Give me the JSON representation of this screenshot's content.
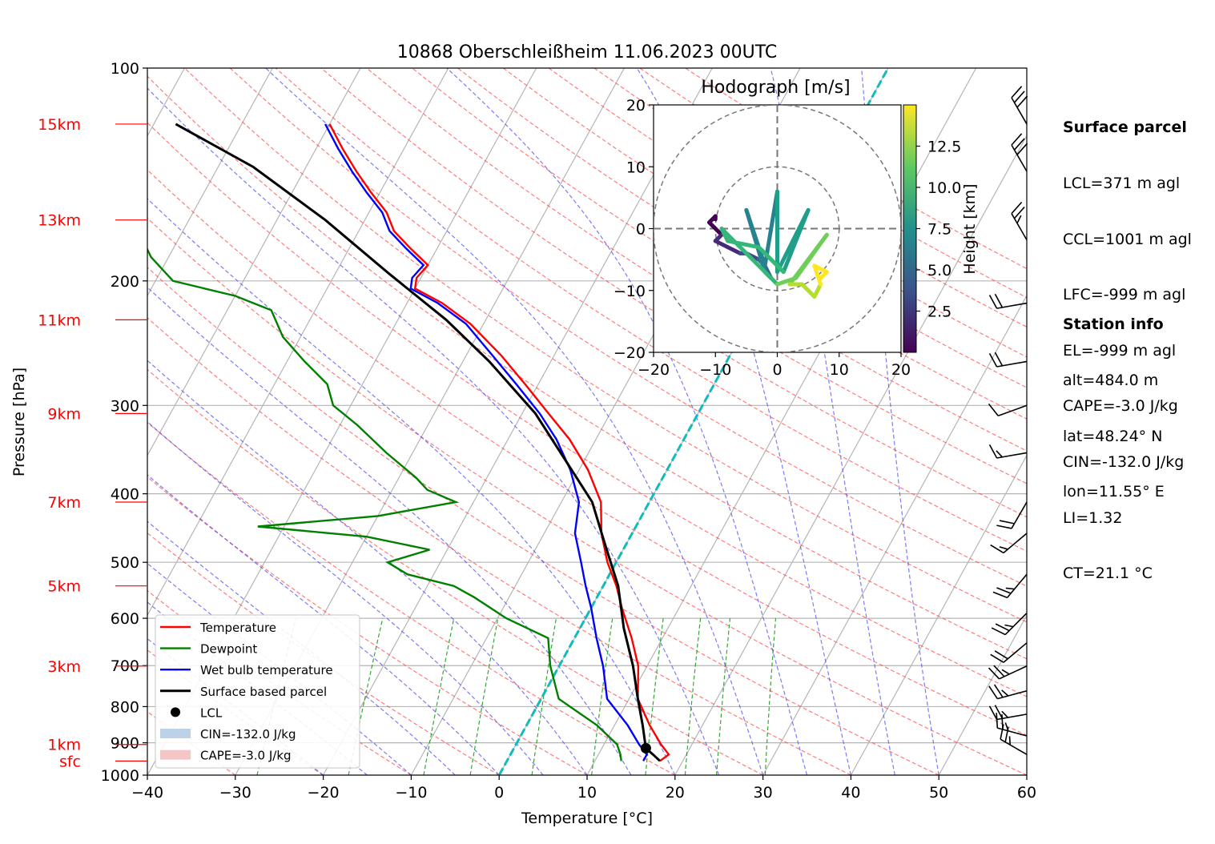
{
  "chart_data": {
    "type": "line",
    "title": "10868 Oberschleißheim 11.06.2023 00UTC",
    "xlabel": "Temperature [°C]",
    "ylabel": "Pressure [hPa]",
    "xlim": [
      -40,
      60
    ],
    "ylim": [
      1000,
      100
    ],
    "y_scale": "log",
    "skew": "skew-T",
    "x_ticks": [
      "−40",
      "−30",
      "−20",
      "−10",
      "0",
      "10",
      "20",
      "30",
      "40",
      "50",
      "60"
    ],
    "y_ticks": [
      "100",
      "200",
      "300",
      "400",
      "500",
      "600",
      "700",
      "800",
      "900",
      "1000"
    ],
    "height_labels": [
      {
        "label": "sfc",
        "p": 955
      },
      {
        "label": "1km",
        "p": 905
      },
      {
        "label": "3km",
        "p": 701
      },
      {
        "label": "5km",
        "p": 540
      },
      {
        "label": "7km",
        "p": 411
      },
      {
        "label": "9km",
        "p": 308
      },
      {
        "label": "11km",
        "p": 227
      },
      {
        "label": "13km",
        "p": 164
      },
      {
        "label": "15km",
        "p": 120
      }
    ],
    "series": [
      {
        "name": "Temperature",
        "color": "#ff0000",
        "points": [
          [
            17.4,
            955
          ],
          [
            18.0,
            935
          ],
          [
            16.5,
            905
          ],
          [
            14.0,
            850
          ],
          [
            11.0,
            780
          ],
          [
            9.0,
            701
          ],
          [
            6.5,
            640
          ],
          [
            3.5,
            580
          ],
          [
            1.5,
            540
          ],
          [
            -1.0,
            500
          ],
          [
            -3.5,
            455
          ],
          [
            -5.5,
            411
          ],
          [
            -9.0,
            370
          ],
          [
            -13.0,
            335
          ],
          [
            -17.0,
            308
          ],
          [
            -21.5,
            280
          ],
          [
            -26.0,
            255
          ],
          [
            -31.5,
            230
          ],
          [
            -36.0,
            215
          ],
          [
            -40.0,
            205
          ],
          [
            -40.5,
            198
          ],
          [
            -40.0,
            190
          ],
          [
            -43.0,
            180
          ],
          [
            -46.0,
            170
          ],
          [
            -48.0,
            160
          ],
          [
            -51.0,
            150
          ],
          [
            -54.0,
            140
          ],
          [
            -57.0,
            130
          ],
          [
            -60.0,
            120
          ]
        ]
      },
      {
        "name": "Dewpoint",
        "color": "#008000",
        "points": [
          [
            13.0,
            955
          ],
          [
            12.5,
            935
          ],
          [
            11.5,
            905
          ],
          [
            8.0,
            850
          ],
          [
            2.0,
            780
          ],
          [
            -1.0,
            701
          ],
          [
            -3.0,
            640
          ],
          [
            -9.0,
            600
          ],
          [
            -14.0,
            560
          ],
          [
            -17.0,
            540
          ],
          [
            -23.0,
            520
          ],
          [
            -26.0,
            500
          ],
          [
            -22.0,
            480
          ],
          [
            -30.0,
            460
          ],
          [
            -43.0,
            445
          ],
          [
            -30.0,
            430
          ],
          [
            -22.0,
            411
          ],
          [
            -26.0,
            395
          ],
          [
            -28.0,
            380
          ],
          [
            -33.0,
            350
          ],
          [
            -38.0,
            320
          ],
          [
            -42.0,
            300
          ],
          [
            -44.0,
            280
          ],
          [
            -48.0,
            260
          ],
          [
            -52.0,
            240
          ],
          [
            -55.0,
            220
          ],
          [
            -60.0,
            210
          ],
          [
            -68.0,
            200
          ],
          [
            -72.0,
            185
          ],
          [
            -74.0,
            175
          ],
          [
            -78.0,
            165
          ],
          [
            -80.0,
            155
          ],
          [
            -82.0,
            145
          ],
          [
            -83.0,
            135
          ],
          [
            -84.0,
            125
          ],
          [
            -85.0,
            120
          ]
        ]
      },
      {
        "name": "Wet bulb temperature",
        "color": "#0000ff",
        "points": [
          [
            15.5,
            955
          ],
          [
            15.5,
            935
          ],
          [
            14.0,
            905
          ],
          [
            11.5,
            850
          ],
          [
            7.5,
            780
          ],
          [
            5.0,
            701
          ],
          [
            2.5,
            640
          ],
          [
            0.0,
            580
          ],
          [
            -2.0,
            540
          ],
          [
            -4.0,
            500
          ],
          [
            -6.5,
            455
          ],
          [
            -8.0,
            411
          ],
          [
            -11.0,
            370
          ],
          [
            -14.5,
            335
          ],
          [
            -18.0,
            308
          ],
          [
            -22.5,
            280
          ],
          [
            -27.0,
            255
          ],
          [
            -32.0,
            230
          ],
          [
            -36.5,
            215
          ],
          [
            -40.5,
            205
          ],
          [
            -41.0,
            198
          ],
          [
            -40.5,
            190
          ],
          [
            -43.5,
            180
          ],
          [
            -46.5,
            170
          ],
          [
            -48.5,
            160
          ],
          [
            -51.5,
            150
          ],
          [
            -54.5,
            140
          ],
          [
            -57.5,
            130
          ],
          [
            -60.5,
            120
          ]
        ]
      },
      {
        "name": "Surface based parcel",
        "color": "#000000",
        "points": [
          [
            17.4,
            955
          ],
          [
            16.2,
            935
          ],
          [
            15.0,
            916
          ],
          [
            13.2,
            850
          ],
          [
            11.0,
            780
          ],
          [
            8.4,
            701
          ],
          [
            5.0,
            620
          ],
          [
            1.7,
            540
          ],
          [
            -2.5,
            470
          ],
          [
            -6.5,
            411
          ],
          [
            -12.0,
            360
          ],
          [
            -18.5,
            308
          ],
          [
            -27.0,
            260
          ],
          [
            -34.5,
            227
          ],
          [
            -44.0,
            195
          ],
          [
            -54.5,
            164
          ],
          [
            -66.0,
            138
          ],
          [
            -77.5,
            120
          ]
        ]
      }
    ],
    "lcl": {
      "name": "LCL",
      "t": 15.0,
      "p": 916
    },
    "legend": [
      "Temperature",
      "Dewpoint",
      "Wet bulb temperature",
      "Surface based parcel",
      "LCL",
      "CIN=-132.0 J/kg",
      "CAPE=-3.0 J/kg"
    ],
    "legend_position": "lower-left",
    "hodograph": {
      "title": "Hodograph [m/s]",
      "xlim": [
        -20,
        20
      ],
      "ylim": [
        -20,
        20
      ],
      "ticks": [
        "−20",
        "−10",
        "0",
        "10",
        "20"
      ],
      "colorbar_label": "Height [km]",
      "colorbar_ticks": [
        "2.5",
        "5.0",
        "7.5",
        "10.0",
        "12.5"
      ],
      "colorbar_range": [
        0,
        15
      ],
      "points": [
        [
          -10,
          1.5,
          0.3
        ],
        [
          -10,
          2,
          0.6
        ],
        [
          -11,
          1,
          0.9
        ],
        [
          -9,
          -1,
          1.2
        ],
        [
          -10,
          -2,
          1.6
        ],
        [
          -8,
          -3,
          2.0
        ],
        [
          -6,
          -4,
          2.6
        ],
        [
          -5,
          -4,
          3.2
        ],
        [
          -3,
          -5,
          4.0
        ],
        [
          -2,
          -6,
          4.6
        ],
        [
          -1,
          -8,
          5.2
        ],
        [
          -2,
          -7,
          5.8
        ],
        [
          -5,
          3,
          6.2
        ],
        [
          -2,
          -6,
          6.6
        ],
        [
          0,
          6,
          7.2
        ],
        [
          0,
          -7,
          7.6
        ],
        [
          5,
          3,
          8.2
        ],
        [
          1,
          -7,
          8.6
        ],
        [
          -3,
          -3,
          9.0
        ],
        [
          -8,
          -2,
          9.6
        ],
        [
          -9,
          0,
          10.0
        ],
        [
          0,
          -9,
          10.4
        ],
        [
          3,
          -8,
          10.8
        ],
        [
          8,
          -1,
          11.2
        ],
        [
          2,
          -9,
          11.6
        ],
        [
          4,
          -9,
          12.0
        ],
        [
          5,
          -10,
          12.6
        ],
        [
          6,
          -11,
          13.0
        ],
        [
          7,
          -9,
          13.4
        ],
        [
          6,
          -6,
          13.8
        ],
        [
          8,
          -7,
          14.3
        ],
        [
          7,
          -8,
          14.6
        ]
      ]
    },
    "wind_barbs": [
      {
        "p": 120,
        "dir": 330,
        "kt": 30
      },
      {
        "p": 140,
        "dir": 330,
        "kt": 30
      },
      {
        "p": 175,
        "dir": 330,
        "kt": 25
      },
      {
        "p": 215,
        "dir": 260,
        "kt": 20
      },
      {
        "p": 260,
        "dir": 260,
        "kt": 20
      },
      {
        "p": 300,
        "dir": 250,
        "kt": 10
      },
      {
        "p": 350,
        "dir": 260,
        "kt": 15
      },
      {
        "p": 411,
        "dir": 210,
        "kt": 20
      },
      {
        "p": 455,
        "dir": 230,
        "kt": 15
      },
      {
        "p": 520,
        "dir": 220,
        "kt": 25
      },
      {
        "p": 590,
        "dir": 225,
        "kt": 25
      },
      {
        "p": 650,
        "dir": 230,
        "kt": 20
      },
      {
        "p": 701,
        "dir": 245,
        "kt": 25
      },
      {
        "p": 760,
        "dir": 255,
        "kt": 25
      },
      {
        "p": 820,
        "dir": 260,
        "kt": 25
      },
      {
        "p": 880,
        "dir": 285,
        "kt": 25
      },
      {
        "p": 935,
        "dir": 300,
        "kt": 25
      }
    ]
  },
  "side_panel": {
    "surface_title": "Surface parcel",
    "surface_lines": [
      "LCL=371 m agl",
      "CCL=1001 m agl",
      "LFC=-999 m agl",
      "EL=-999 m agl",
      "CAPE=-3.0 J/kg",
      "CIN=-132.0 J/kg",
      "LI=1.32",
      "CT=21.1 °C"
    ],
    "station_title": "Station info",
    "station_lines": [
      "alt=484.0 m",
      "lat=48.24° N",
      "lon=11.55° E"
    ]
  }
}
